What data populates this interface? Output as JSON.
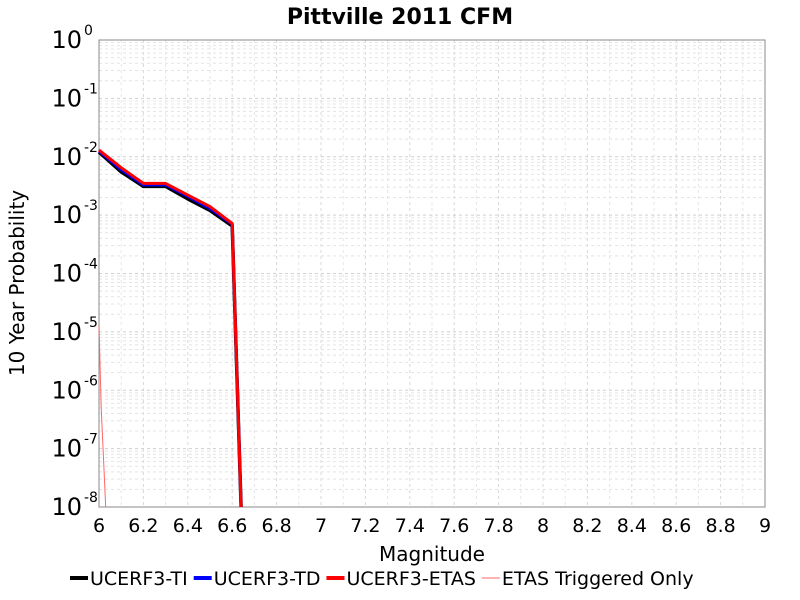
{
  "chart_data": {
    "type": "line",
    "title": "Pittville 2011 CFM",
    "xlabel": "Magnitude",
    "ylabel": "10 Year Probability",
    "xlim": [
      6,
      9
    ],
    "ylim": [
      1e-08,
      1
    ],
    "yscale": "log",
    "grid": true,
    "legend_position": "bottom",
    "x_ticks": [
      "6",
      "6.2",
      "6.4",
      "6.6",
      "6.8",
      "7",
      "7.2",
      "7.4",
      "7.6",
      "7.8",
      "8",
      "8.2",
      "8.4",
      "8.6",
      "8.8",
      "9"
    ],
    "y_ticks": [
      {
        "base": "10",
        "exp": "0"
      },
      {
        "base": "10",
        "exp": "-1"
      },
      {
        "base": "10",
        "exp": "-2"
      },
      {
        "base": "10",
        "exp": "-3"
      },
      {
        "base": "10",
        "exp": "-4"
      },
      {
        "base": "10",
        "exp": "-5"
      },
      {
        "base": "10",
        "exp": "-6"
      },
      {
        "base": "10",
        "exp": "-7"
      },
      {
        "base": "10",
        "exp": "-8"
      }
    ],
    "series": [
      {
        "name": "UCERF3-TI",
        "color": "#000000",
        "x": [
          6.0,
          6.1,
          6.2,
          6.3,
          6.4,
          6.5,
          6.6,
          6.64
        ],
        "y": [
          0.012,
          0.0055,
          0.0031,
          0.0031,
          0.0019,
          0.0012,
          0.00065,
          1e-08
        ]
      },
      {
        "name": "UCERF3-TD",
        "color": "#0000ff",
        "x": [
          6.0,
          6.1,
          6.2,
          6.3,
          6.4,
          6.5,
          6.6,
          6.64
        ],
        "y": [
          0.0125,
          0.006,
          0.0033,
          0.0033,
          0.0021,
          0.0013,
          0.0007,
          1e-08
        ]
      },
      {
        "name": "UCERF3-ETAS",
        "color": "#ff0000",
        "x": [
          6.0,
          6.1,
          6.2,
          6.3,
          6.4,
          6.5,
          6.6,
          6.64
        ],
        "y": [
          0.013,
          0.0065,
          0.0035,
          0.0035,
          0.0022,
          0.0014,
          0.00072,
          1e-08
        ]
      },
      {
        "name": "ETAS Triggered Only",
        "color": "#ff6666",
        "x": [
          6.0,
          6.01,
          6.03
        ],
        "y": [
          1.3e-05,
          5e-07,
          1e-08
        ]
      }
    ]
  }
}
